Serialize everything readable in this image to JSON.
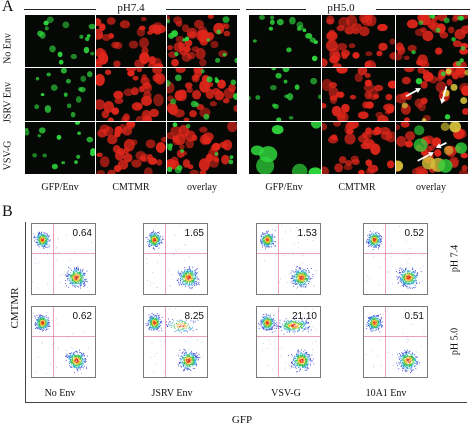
{
  "panel_a": {
    "letter": "A",
    "conditions": [
      "pH7.4",
      "pH5.0"
    ],
    "row_labels": [
      "No Env",
      "JSRV Env",
      "VSV-G"
    ],
    "col_labels": [
      "GFP/Env",
      "CMTMR",
      "overlay"
    ],
    "colors": {
      "gfp": "#2fd43c",
      "cmtmr": "#e0261b",
      "overlay": "#d8c23a",
      "arrow": "#ffffff"
    },
    "arrows": "white arrows on pH5.0 overlay panels (JSRV Env, VSV-G)"
  },
  "panel_b": {
    "letter": "B",
    "y_axis": "CMTMR",
    "x_axis": "GFP",
    "col_labels": [
      "No Env",
      "JSRV Env",
      "VSV-G",
      "10A1 Env"
    ],
    "row_labels": [
      "pH 7.4",
      "pH 5.0"
    ],
    "values": [
      [
        "0.64",
        "1.65",
        "1.53",
        "0.52"
      ],
      [
        "0.62",
        "8.25",
        "21.10",
        "0.51"
      ]
    ]
  },
  "chart_data": {
    "type": "table",
    "title": "",
    "columns": [
      "No Env",
      "JSRV Env",
      "VSV-G",
      "10A1 Env"
    ],
    "rows": [
      "pH 7.4",
      "pH 5.0"
    ],
    "values": [
      [
        0.64,
        1.65,
        1.53,
        0.52
      ],
      [
        0.62,
        8.25,
        21.1,
        0.51
      ]
    ],
    "xlabel": "GFP",
    "ylabel": "CMTMR"
  }
}
